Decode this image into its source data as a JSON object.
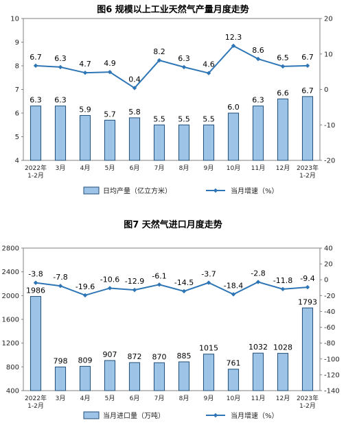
{
  "chart_data": [
    {
      "type": "bar",
      "title": "图6  规模以上工业天然气产量月度走势",
      "categories": [
        "2022年\n1-2月",
        "3月",
        "4月",
        "5月",
        "6月",
        "7月",
        "8月",
        "9月",
        "10月",
        "11月",
        "12月",
        "2023年\n1-2月"
      ],
      "series": [
        {
          "name": "日均产量（亿立方米）",
          "type": "bar",
          "axis": "left",
          "values": [
            6.3,
            6.3,
            5.9,
            5.7,
            5.8,
            5.5,
            5.5,
            5.5,
            6.0,
            6.3,
            6.6,
            6.7
          ],
          "labels": [
            "6.3",
            "6.3",
            "5.9",
            "5.7",
            "5.8",
            "5.5",
            "5.5",
            "5.5",
            "6.0",
            "6.3",
            "6.6",
            "6.7"
          ]
        },
        {
          "name": "当月增速（%）",
          "type": "line",
          "axis": "right",
          "values": [
            6.7,
            6.3,
            4.7,
            4.9,
            0.4,
            8.2,
            6.3,
            4.6,
            12.3,
            8.6,
            6.5,
            6.7
          ],
          "labels": [
            "6.7",
            "6.3",
            "4.7",
            "4.9",
            "0.4",
            "8.2",
            "6.3",
            "4.6",
            "12.3",
            "8.6",
            "6.5",
            "6.7"
          ]
        }
      ],
      "ylim_left": [
        4,
        10
      ],
      "yticks_left": [
        "4",
        "5",
        "6",
        "7",
        "8",
        "9",
        "10"
      ],
      "ylim_right": [
        -20,
        20
      ],
      "yticks_right": [
        "-20",
        "-10",
        "0",
        "10",
        "20"
      ],
      "legend_position": "bottom",
      "colors": {
        "bar_fill": "#9dc3e6",
        "bar_stroke": "#1f4e79",
        "line": "#2e75b6"
      }
    },
    {
      "type": "bar",
      "title": "图7  天然气进口月度走势",
      "categories": [
        "2022年\n1-2月",
        "3月",
        "4月",
        "5月",
        "6月",
        "7月",
        "8月",
        "9月",
        "10月",
        "11月",
        "12月",
        "2023年\n1-2月"
      ],
      "series": [
        {
          "name": "当月进口量（万吨）",
          "type": "bar",
          "axis": "left",
          "values": [
            1986,
            798,
            809,
            907,
            872,
            870,
            885,
            1015,
            761,
            1032,
            1028,
            1793
          ],
          "labels": [
            "1986",
            "798",
            "809",
            "907",
            "872",
            "870",
            "885",
            "1015",
            "761",
            "1032",
            "1028",
            "1793"
          ]
        },
        {
          "name": "当月增速（%）",
          "type": "line",
          "axis": "right",
          "values": [
            -3.8,
            -7.8,
            -19.6,
            -10.6,
            -12.9,
            -6.1,
            -14.5,
            -3.7,
            -18.4,
            -2.8,
            -11.8,
            -9.4
          ],
          "labels": [
            "-3.8",
            "-7.8",
            "-19.6",
            "-10.6",
            "-12.9",
            "-6.1",
            "-14.5",
            "-3.7",
            "-18.4",
            "-2.8",
            "-11.8",
            "-9.4"
          ]
        }
      ],
      "ylim_left": [
        400,
        2800
      ],
      "yticks_left": [
        "400",
        "800",
        "1200",
        "1600",
        "2000",
        "2400",
        "2800"
      ],
      "ylim_right": [
        -140,
        40
      ],
      "yticks_right": [
        "-140",
        "-120",
        "-100",
        "-80",
        "-60",
        "-40",
        "-20",
        "0",
        "20",
        "40"
      ],
      "legend_position": "bottom",
      "colors": {
        "bar_fill": "#9dc3e6",
        "bar_stroke": "#1f4e79",
        "line": "#2e75b6"
      }
    }
  ]
}
